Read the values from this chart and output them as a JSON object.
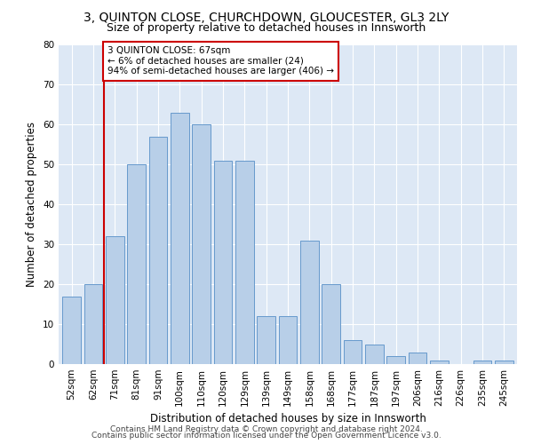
{
  "title1": "3, QUINTON CLOSE, CHURCHDOWN, GLOUCESTER, GL3 2LY",
  "title2": "Size of property relative to detached houses in Innsworth",
  "xlabel": "Distribution of detached houses by size in Innsworth",
  "ylabel": "Number of detached properties",
  "bar_values": [
    17,
    20,
    32,
    50,
    57,
    63,
    60,
    51,
    51,
    12,
    12,
    31,
    20,
    6,
    5,
    2,
    3,
    1,
    0,
    1,
    1
  ],
  "bar_labels": [
    "52sqm",
    "62sqm",
    "71sqm",
    "81sqm",
    "91sqm",
    "100sqm",
    "110sqm",
    "120sqm",
    "129sqm",
    "139sqm",
    "149sqm",
    "158sqm",
    "168sqm",
    "177sqm",
    "187sqm",
    "197sqm",
    "206sqm",
    "216sqm",
    "226sqm",
    "235sqm",
    "245sqm"
  ],
  "bar_color": "#b8cfe8",
  "bar_edge_color": "#6699cc",
  "bar_width": 0.85,
  "red_line_x": 1.5,
  "annotation_text": "3 QUINTON CLOSE: 67sqm\n← 6% of detached houses are smaller (24)\n94% of semi-detached houses are larger (406) →",
  "annotation_box_color": "#ffffff",
  "annotation_box_edge": "#cc0000",
  "ylim": [
    0,
    80
  ],
  "yticks": [
    0,
    10,
    20,
    30,
    40,
    50,
    60,
    70,
    80
  ],
  "background_color": "#dde8f5",
  "footer1": "Contains HM Land Registry data © Crown copyright and database right 2024.",
  "footer2": "Contains public sector information licensed under the Open Government Licence v3.0.",
  "title1_fontsize": 10,
  "title2_fontsize": 9,
  "xlabel_fontsize": 8.5,
  "ylabel_fontsize": 8.5,
  "tick_fontsize": 7.5,
  "annotation_fontsize": 7.5,
  "footer_fontsize": 6.5
}
